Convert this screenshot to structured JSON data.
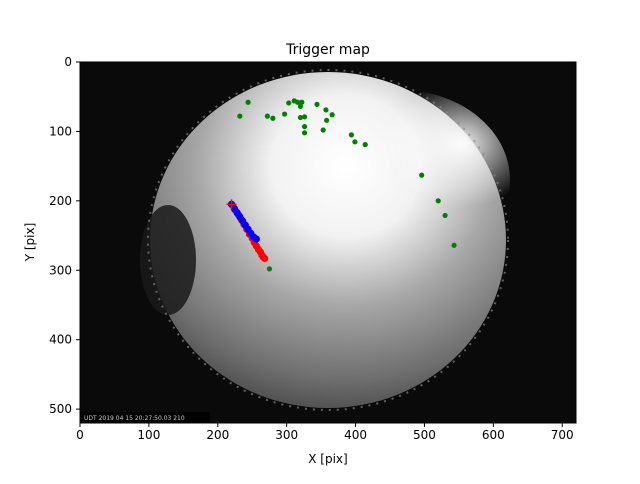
{
  "chart_data": {
    "type": "scatter",
    "title": "Trigger map",
    "xlabel": "X [pix]",
    "ylabel": "Y [pix]",
    "xlim": [
      0,
      720
    ],
    "ylim": [
      520,
      0
    ],
    "y_inverted": true,
    "xticks": [
      "0",
      "100",
      "200",
      "300",
      "400",
      "500",
      "600",
      "700"
    ],
    "yticks": [
      "0",
      "100",
      "200",
      "300",
      "400",
      "500"
    ],
    "grid": false,
    "background": "all-sky fisheye camera frame",
    "image_timestamp": "UDT 2019 04 15 20:27:50.03 210",
    "series": [
      {
        "color": "#008000",
        "marker": "circle",
        "points": [
          [
            232,
            78
          ],
          [
            244,
            58
          ],
          [
            272,
            78
          ],
          [
            280,
            81
          ],
          [
            297,
            75
          ],
          [
            303,
            59
          ],
          [
            311,
            56
          ],
          [
            316,
            58
          ],
          [
            320,
            64
          ],
          [
            322,
            58
          ],
          [
            320,
            80
          ],
          [
            326,
            79
          ],
          [
            326,
            93
          ],
          [
            326,
            102
          ],
          [
            344,
            61
          ],
          [
            353,
            98
          ],
          [
            357,
            69
          ],
          [
            358,
            84
          ],
          [
            366,
            76
          ],
          [
            394,
            105
          ],
          [
            399,
            115
          ],
          [
            414,
            119
          ],
          [
            496,
            163
          ],
          [
            520,
            200
          ],
          [
            530,
            221
          ],
          [
            543,
            264
          ],
          [
            275,
            298
          ]
        ]
      },
      {
        "color": "#ff0000",
        "marker": "circle",
        "points": [
          [
            220,
            205
          ],
          [
            225,
            213
          ],
          [
            230,
            220
          ],
          [
            234,
            227
          ],
          [
            238,
            234
          ],
          [
            242,
            241
          ],
          [
            246,
            248
          ],
          [
            250,
            254
          ],
          [
            253,
            260
          ],
          [
            256,
            265
          ],
          [
            259,
            270
          ],
          [
            262,
            274
          ],
          [
            264,
            278
          ],
          [
            266,
            281
          ],
          [
            268,
            283
          ]
        ]
      },
      {
        "color": "#0000ff",
        "marker": "circle",
        "points": [
          [
            220,
            205
          ],
          [
            224,
            211
          ],
          [
            228,
            217
          ],
          [
            232,
            223
          ],
          [
            236,
            229
          ],
          [
            240,
            235
          ],
          [
            244,
            241
          ],
          [
            248,
            247
          ],
          [
            252,
            252
          ],
          [
            256,
            255
          ]
        ]
      }
    ]
  }
}
